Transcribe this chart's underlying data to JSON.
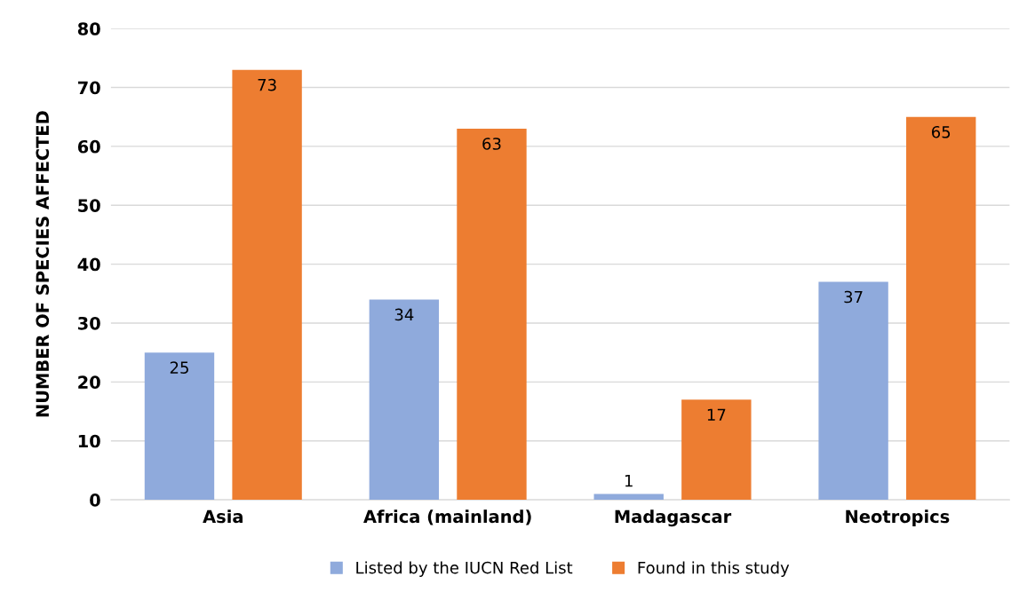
{
  "chart_data": {
    "type": "bar",
    "ylabel": "NUMBER OF SPECIES AFFECTED",
    "categories": [
      "Asia",
      "Africa (mainland)",
      "Madagascar",
      "Neotropics"
    ],
    "series": [
      {
        "name": "Listed by the IUCN Red List",
        "color": "#8faadc",
        "values": [
          25,
          34,
          1,
          37
        ]
      },
      {
        "name": "Found in this study",
        "color": "#ed7d31",
        "values": [
          73,
          63,
          17,
          65
        ]
      }
    ],
    "ylim": [
      0,
      80
    ],
    "yticks": [
      0,
      10,
      20,
      30,
      40,
      50,
      60,
      70,
      80
    ],
    "grid": "y",
    "legend": "bottom",
    "data_labels": true
  }
}
